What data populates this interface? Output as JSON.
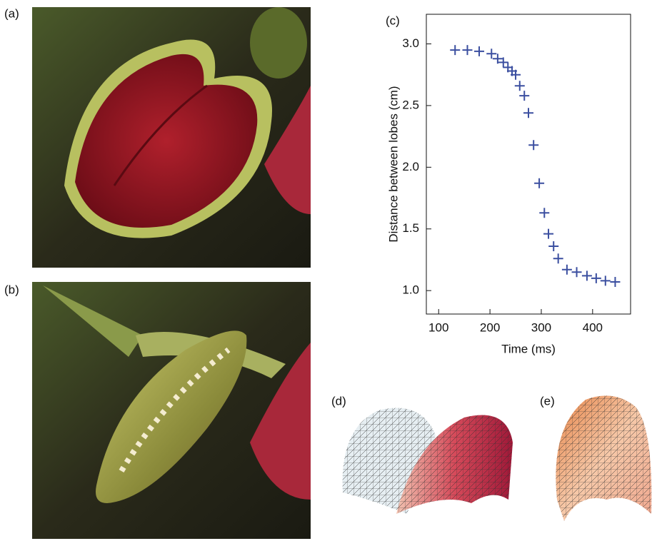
{
  "panel_labels": [
    "(a)",
    "(b)",
    "(c)",
    "(d)",
    "(e)"
  ],
  "chart_data": {
    "type": "scatter",
    "x_label": "Time (ms)",
    "y_label": "Distance between lobes (cm)",
    "color": "#3b4fa0",
    "marker": "plus",
    "x": [
      132,
      156,
      179,
      203,
      215,
      226,
      235,
      243,
      250,
      258,
      267,
      275,
      285,
      296,
      306,
      314,
      324,
      333,
      350,
      369,
      389,
      407,
      425,
      444
    ],
    "values": [
      2.95,
      2.95,
      2.94,
      2.92,
      2.88,
      2.85,
      2.81,
      2.78,
      2.75,
      2.66,
      2.58,
      2.44,
      2.18,
      1.87,
      1.63,
      1.46,
      1.36,
      1.26,
      1.17,
      1.15,
      1.12,
      1.1,
      1.08,
      1.07
    ],
    "xlim": [
      76,
      474
    ],
    "ylim": [
      0.81,
      3.24
    ],
    "xticks": [
      100,
      200,
      300,
      400
    ],
    "yticks": [
      {
        "value": 1,
        "label": "1.0"
      },
      {
        "value": 1.5,
        "label": "1.5"
      },
      {
        "value": 2,
        "label": "2.0"
      },
      {
        "value": 2.5,
        "label": "2.5"
      },
      {
        "value": 3,
        "label": "3.0"
      }
    ]
  }
}
